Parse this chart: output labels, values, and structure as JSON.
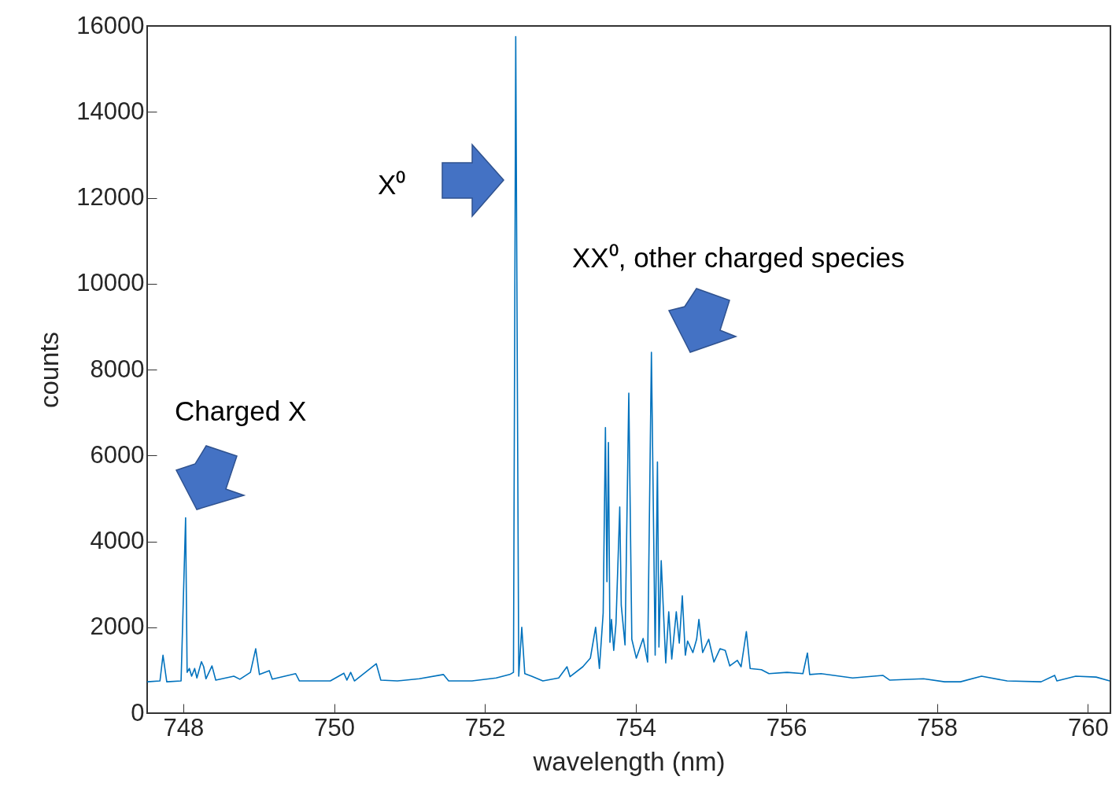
{
  "chart_data": {
    "type": "line",
    "xlabel": "wavelength (nm)",
    "ylabel": "counts",
    "xlim": [
      747.52,
      760.3
    ],
    "xticks": [
      748,
      750,
      752,
      754,
      756,
      758,
      760
    ],
    "ylim": [
      0,
      16000
    ],
    "yticks": [
      0,
      2000,
      4000,
      6000,
      8000,
      10000,
      12000,
      14000,
      16000
    ],
    "grid": false,
    "marker": "none",
    "line_style": "solid",
    "annotations": [
      "Charged X",
      "X⁰",
      "XX⁰, other charged species"
    ],
    "series": [
      {
        "color": "#0072bd",
        "x": [
          747.52,
          747.69,
          747.73,
          747.78,
          747.97,
          748.03,
          748.05,
          748.08,
          748.11,
          748.15,
          748.18,
          748.24,
          748.27,
          748.3,
          748.38,
          748.43,
          748.67,
          748.75,
          748.89,
          748.96,
          749.01,
          749.14,
          749.18,
          749.49,
          749.54,
          749.95,
          750.13,
          750.17,
          750.22,
          750.27,
          750.56,
          750.62,
          750.84,
          751.13,
          751.45,
          751.52,
          751.83,
          752.15,
          752.33,
          752.38,
          752.41,
          752.45,
          752.49,
          752.53,
          752.62,
          752.77,
          752.98,
          753.09,
          753.13,
          753.3,
          753.4,
          753.47,
          753.52,
          753.57,
          753.6,
          753.62,
          753.64,
          753.66,
          753.68,
          753.71,
          753.74,
          753.79,
          753.81,
          753.86,
          753.91,
          753.95,
          754.01,
          754.1,
          754.16,
          754.21,
          754.26,
          754.29,
          754.31,
          754.34,
          754.4,
          754.44,
          754.48,
          754.54,
          754.58,
          754.62,
          754.66,
          754.69,
          754.76,
          754.81,
          754.84,
          754.89,
          754.97,
          755.04,
          755.12,
          755.19,
          755.25,
          755.35,
          755.4,
          755.47,
          755.52,
          755.67,
          755.77,
          756.01,
          756.22,
          756.28,
          756.31,
          756.46,
          756.88,
          757.28,
          757.37,
          757.82,
          758.1,
          758.31,
          758.59,
          758.93,
          759.38,
          759.56,
          759.59,
          759.84,
          760.11,
          760.29
        ],
        "values": [
          730,
          750,
          1350,
          730,
          750,
          4550,
          950,
          1040,
          860,
          1040,
          820,
          1200,
          1080,
          800,
          1100,
          770,
          860,
          790,
          950,
          1500,
          900,
          990,
          790,
          920,
          750,
          750,
          930,
          770,
          950,
          750,
          1150,
          770,
          750,
          800,
          900,
          750,
          750,
          820,
          900,
          950,
          15750,
          860,
          2000,
          920,
          860,
          750,
          820,
          1080,
          850,
          1080,
          1280,
          2000,
          1040,
          2330,
          6650,
          3060,
          6300,
          1650,
          2180,
          1460,
          2090,
          4800,
          2510,
          1590,
          7450,
          1720,
          1280,
          1740,
          1190,
          8400,
          1350,
          5850,
          1540,
          3550,
          1170,
          2360,
          1260,
          2360,
          1630,
          2730,
          1350,
          1680,
          1410,
          1720,
          2180,
          1410,
          1720,
          1190,
          1500,
          1460,
          1100,
          1230,
          1080,
          1900,
          1040,
          1010,
          920,
          950,
          920,
          1400,
          900,
          920,
          820,
          880,
          770,
          800,
          730,
          730,
          860,
          750,
          730,
          880,
          750,
          860,
          840,
          750
        ]
      }
    ]
  }
}
